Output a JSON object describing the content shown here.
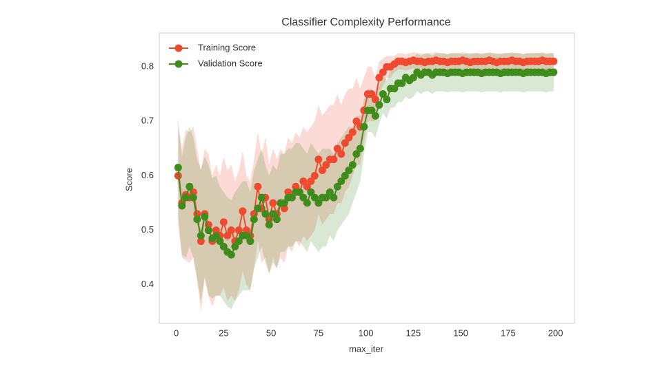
{
  "chart_data": {
    "type": "line",
    "title": "Classifier Complexity Performance",
    "xlabel": "max_iter",
    "ylabel": "Score",
    "x": [
      1,
      3,
      5,
      7,
      9,
      11,
      13,
      15,
      17,
      19,
      21,
      23,
      25,
      27,
      29,
      31,
      33,
      35,
      37,
      39,
      41,
      43,
      45,
      47,
      49,
      51,
      53,
      55,
      57,
      59,
      61,
      63,
      65,
      67,
      69,
      71,
      73,
      75,
      77,
      79,
      81,
      83,
      85,
      87,
      89,
      91,
      93,
      95,
      97,
      99,
      101,
      103,
      105,
      107,
      109,
      111,
      113,
      115,
      117,
      119,
      121,
      123,
      125,
      127,
      129,
      131,
      133,
      135,
      137,
      139,
      141,
      143,
      145,
      147,
      149,
      151,
      153,
      155,
      157,
      159,
      161,
      163,
      165,
      167,
      169,
      171,
      173,
      175,
      177,
      179,
      181,
      183,
      185,
      187,
      189,
      191,
      193,
      195,
      197,
      199
    ],
    "series": [
      {
        "name": "Training Score",
        "color": "#ef4a30",
        "values": [
          0.6,
          0.55,
          0.565,
          0.56,
          0.57,
          0.53,
          0.48,
          0.53,
          0.51,
          0.48,
          0.5,
          0.49,
          0.515,
          0.49,
          0.5,
          0.48,
          0.5,
          0.535,
          0.5,
          0.49,
          0.53,
          0.58,
          0.54,
          0.56,
          0.52,
          0.55,
          0.53,
          0.55,
          0.54,
          0.57,
          0.56,
          0.58,
          0.57,
          0.59,
          0.58,
          0.59,
          0.6,
          0.63,
          0.61,
          0.62,
          0.63,
          0.63,
          0.65,
          0.64,
          0.66,
          0.67,
          0.68,
          0.7,
          0.69,
          0.72,
          0.75,
          0.75,
          0.74,
          0.78,
          0.79,
          0.8,
          0.8,
          0.805,
          0.81,
          0.81,
          0.808,
          0.81,
          0.812,
          0.81,
          0.81,
          0.808,
          0.81,
          0.81,
          0.812,
          0.81,
          0.81,
          0.808,
          0.81,
          0.81,
          0.81,
          0.812,
          0.81,
          0.808,
          0.81,
          0.81,
          0.81,
          0.81,
          0.812,
          0.81,
          0.808,
          0.81,
          0.81,
          0.81,
          0.812,
          0.81,
          0.81,
          0.808,
          0.81,
          0.81,
          0.81,
          0.81,
          0.812,
          0.81,
          0.81,
          0.81
        ],
        "std": [
          0.09,
          0.1,
          0.12,
          0.12,
          0.12,
          0.12,
          0.13,
          0.12,
          0.13,
          0.12,
          0.12,
          0.11,
          0.12,
          0.12,
          0.12,
          0.11,
          0.11,
          0.11,
          0.1,
          0.1,
          0.1,
          0.1,
          0.1,
          0.11,
          0.1,
          0.1,
          0.1,
          0.1,
          0.1,
          0.1,
          0.1,
          0.1,
          0.1,
          0.1,
          0.1,
          0.1,
          0.1,
          0.1,
          0.1,
          0.1,
          0.1,
          0.1,
          0.1,
          0.09,
          0.09,
          0.09,
          0.08,
          0.08,
          0.07,
          0.06,
          0.05,
          0.05,
          0.04,
          0.03,
          0.025,
          0.02,
          0.02,
          0.015,
          0.015,
          0.015,
          0.015,
          0.015,
          0.015,
          0.015,
          0.015,
          0.015,
          0.015,
          0.015,
          0.015,
          0.015,
          0.015,
          0.015,
          0.015,
          0.015,
          0.015,
          0.015,
          0.015,
          0.015,
          0.015,
          0.015,
          0.015,
          0.015,
          0.015,
          0.015,
          0.015,
          0.015,
          0.015,
          0.015,
          0.015,
          0.015,
          0.015,
          0.015,
          0.015,
          0.015,
          0.015,
          0.015,
          0.015,
          0.015,
          0.015,
          0.015
        ]
      },
      {
        "name": "Validation Score",
        "color": "#3f8c1c",
        "values": [
          0.615,
          0.545,
          0.56,
          0.58,
          0.56,
          0.52,
          0.49,
          0.525,
          0.5,
          0.485,
          0.49,
          0.48,
          0.47,
          0.46,
          0.455,
          0.47,
          0.48,
          0.49,
          0.49,
          0.48,
          0.52,
          0.54,
          0.56,
          0.53,
          0.51,
          0.53,
          0.52,
          0.55,
          0.55,
          0.56,
          0.56,
          0.57,
          0.57,
          0.56,
          0.55,
          0.57,
          0.56,
          0.55,
          0.56,
          0.56,
          0.57,
          0.56,
          0.58,
          0.59,
          0.6,
          0.61,
          0.62,
          0.64,
          0.65,
          0.69,
          0.72,
          0.72,
          0.71,
          0.73,
          0.75,
          0.74,
          0.76,
          0.76,
          0.77,
          0.77,
          0.78,
          0.775,
          0.78,
          0.79,
          0.785,
          0.79,
          0.79,
          0.785,
          0.79,
          0.79,
          0.79,
          0.788,
          0.79,
          0.79,
          0.79,
          0.788,
          0.79,
          0.79,
          0.79,
          0.79,
          0.788,
          0.79,
          0.79,
          0.79,
          0.79,
          0.788,
          0.79,
          0.79,
          0.79,
          0.79,
          0.79,
          0.788,
          0.79,
          0.79,
          0.79,
          0.79,
          0.79,
          0.788,
          0.79,
          0.79
        ],
        "std": [
          0.09,
          0.09,
          0.11,
          0.11,
          0.11,
          0.11,
          0.12,
          0.11,
          0.12,
          0.11,
          0.11,
          0.1,
          0.1,
          0.1,
          0.1,
          0.1,
          0.1,
          0.1,
          0.1,
          0.09,
          0.09,
          0.09,
          0.09,
          0.09,
          0.09,
          0.09,
          0.09,
          0.09,
          0.09,
          0.09,
          0.09,
          0.09,
          0.09,
          0.09,
          0.09,
          0.09,
          0.09,
          0.09,
          0.09,
          0.09,
          0.08,
          0.08,
          0.08,
          0.08,
          0.08,
          0.08,
          0.07,
          0.07,
          0.06,
          0.05,
          0.04,
          0.04,
          0.04,
          0.035,
          0.035,
          0.035,
          0.035,
          0.035,
          0.035,
          0.035,
          0.035,
          0.035,
          0.035,
          0.035,
          0.035,
          0.035,
          0.035,
          0.035,
          0.035,
          0.035,
          0.035,
          0.035,
          0.035,
          0.035,
          0.035,
          0.035,
          0.035,
          0.035,
          0.035,
          0.035,
          0.035,
          0.035,
          0.035,
          0.035,
          0.035,
          0.035,
          0.035,
          0.035,
          0.035,
          0.035,
          0.035,
          0.035,
          0.035,
          0.035,
          0.035,
          0.035,
          0.035,
          0.035,
          0.035,
          0.035
        ]
      }
    ],
    "xlim": [
      -8.95,
      209.95
    ],
    "ylim": [
      0.329,
      0.862
    ],
    "xticks": [
      0,
      25,
      50,
      75,
      100,
      125,
      150,
      175,
      200
    ],
    "yticks": [
      0.4,
      0.5,
      0.6,
      0.7,
      0.8
    ],
    "grid": false,
    "legend": "upper left"
  }
}
